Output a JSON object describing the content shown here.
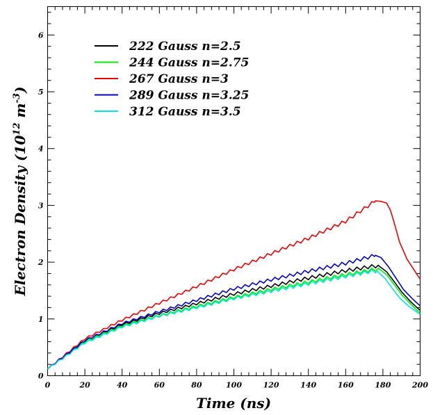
{
  "chart_data": {
    "type": "line",
    "title": "",
    "xlabel": "Time (ns)",
    "ylabel_main": "Electron Density (10",
    "ylabel_exp1": "12",
    "ylabel_unit": " m",
    "ylabel_exp2": "-3",
    "ylabel_close": ")",
    "xlim": [
      0,
      200
    ],
    "ylim": [
      0,
      6.5
    ],
    "xticks": [
      0,
      20,
      40,
      60,
      80,
      100,
      120,
      140,
      160,
      180,
      200
    ],
    "yticks": [
      0,
      1,
      2,
      3,
      4,
      5,
      6
    ],
    "grid": false,
    "legend_position": "top-left",
    "series": [
      {
        "name": "222 Gauss  n=2.5",
        "color": "#000000",
        "x": [
          0,
          20,
          40,
          60,
          80,
          100,
          120,
          140,
          160,
          175,
          178,
          182,
          186,
          190,
          195,
          200
        ],
        "y": [
          0.12,
          0.62,
          0.9,
          1.1,
          1.27,
          1.44,
          1.58,
          1.72,
          1.85,
          1.93,
          1.93,
          1.83,
          1.66,
          1.48,
          1.3,
          1.15
        ]
      },
      {
        "name": "244 Gauss  n=2.75",
        "color": "#00ee00",
        "x": [
          0,
          20,
          40,
          60,
          80,
          100,
          120,
          140,
          160,
          175,
          178,
          182,
          186,
          190,
          195,
          200
        ],
        "y": [
          0.12,
          0.6,
          0.88,
          1.06,
          1.22,
          1.38,
          1.52,
          1.65,
          1.78,
          1.87,
          1.88,
          1.78,
          1.61,
          1.43,
          1.26,
          1.1
        ]
      },
      {
        "name": "267 Gauss  n=3",
        "color": "#ee0000",
        "x": [
          0,
          20,
          40,
          60,
          80,
          100,
          120,
          140,
          160,
          176,
          179,
          182,
          184,
          186,
          189,
          193,
          197,
          200
        ],
        "y": [
          0.12,
          0.65,
          0.98,
          1.28,
          1.57,
          1.87,
          2.15,
          2.42,
          2.72,
          3.08,
          3.07,
          3.04,
          2.92,
          2.7,
          2.35,
          2.05,
          1.85,
          1.7
        ]
      },
      {
        "name": "289 Gauss  n=3.25",
        "color": "#0000cc",
        "x": [
          0,
          20,
          40,
          60,
          80,
          100,
          120,
          140,
          160,
          176,
          179,
          183,
          187,
          191,
          196,
          200
        ],
        "y": [
          0.12,
          0.62,
          0.92,
          1.13,
          1.33,
          1.53,
          1.69,
          1.84,
          1.98,
          2.12,
          2.08,
          1.92,
          1.72,
          1.52,
          1.35,
          1.23
        ]
      },
      {
        "name": "312 Gauss  n=3.5",
        "color": "#00e5e5",
        "x": [
          0,
          20,
          40,
          60,
          80,
          100,
          120,
          140,
          160,
          174,
          177,
          181,
          185,
          189,
          194,
          200
        ],
        "y": [
          0.12,
          0.58,
          0.86,
          1.05,
          1.2,
          1.36,
          1.49,
          1.62,
          1.75,
          1.84,
          1.84,
          1.72,
          1.54,
          1.37,
          1.22,
          1.08
        ]
      }
    ]
  }
}
